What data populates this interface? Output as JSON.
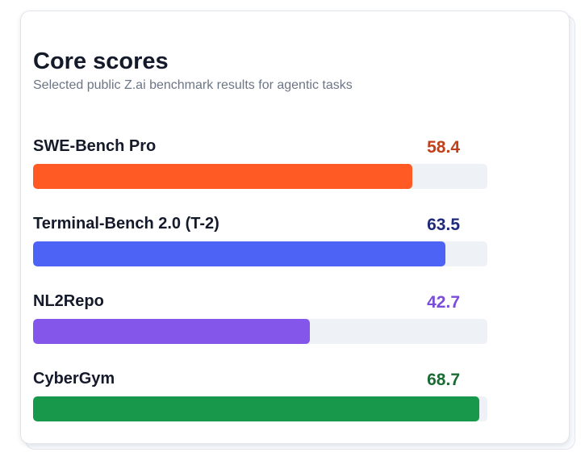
{
  "card": {
    "title": "Core scores",
    "subtitle": "Selected public Z.ai benchmark results for agentic tasks"
  },
  "chart_data": {
    "type": "bar",
    "orientation": "horizontal",
    "title": "Core scores",
    "subtitle": "Selected public Z.ai benchmark results for agentic tasks",
    "xlim": [
      0,
      70
    ],
    "grid": false,
    "categories": [
      "SWE-Bench Pro",
      "Terminal-Bench 2.0 (T-2)",
      "NL2Repo",
      "CyberGym"
    ],
    "values": [
      58.4,
      63.5,
      42.7,
      68.7
    ],
    "value_labels": [
      "58.4",
      "63.5",
      "42.7",
      "68.7"
    ],
    "bar_colors": [
      "#ff5a23",
      "#4d63f5",
      "#8457ea",
      "#17984a"
    ],
    "label_colors": [
      "#c0401a",
      "#1f2a7a",
      "#7a4dd8",
      "#1c6b34"
    ]
  }
}
